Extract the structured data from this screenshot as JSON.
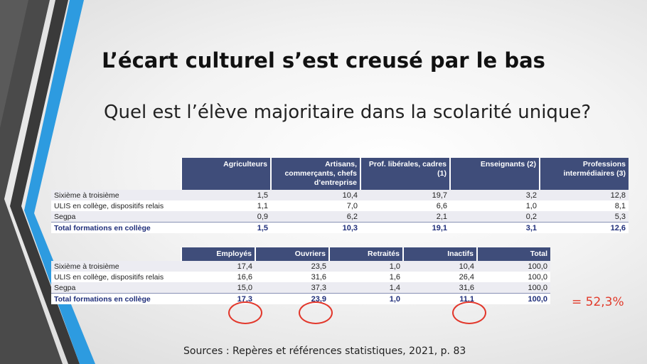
{
  "slide": {
    "title": "L’écart culturel s’est creusé par le bas",
    "subtitle": "Quel est l’élève majoritaire dans la scolarité unique?",
    "annotation": "= 52,3%",
    "source": "Sources : Repères et références statistiques, 2021, p. 83"
  },
  "table1": {
    "headers": [
      "Agriculteurs",
      "Artisans, commerçants, chefs d’entreprise",
      "Prof. libérales, cadres (1)",
      "Enseignants (2)",
      "Professions intermédiaires (3)"
    ],
    "rows": [
      {
        "label": "Sixième à troisième",
        "cells": [
          "1,5",
          "10,4",
          "19,7",
          "3,2",
          "12,8"
        ]
      },
      {
        "label": "ULIS en collège, dispositifs relais",
        "cells": [
          "1,1",
          "7,0",
          "6,6",
          "1,0",
          "8,1"
        ]
      },
      {
        "label": "Segpa",
        "cells": [
          "0,9",
          "6,2",
          "2,1",
          "0,2",
          "5,3"
        ]
      },
      {
        "label": "Total formations en collège",
        "cells": [
          "1,5",
          "10,3",
          "19,1",
          "3,1",
          "12,6"
        ]
      }
    ]
  },
  "table2": {
    "headers": [
      "Employés",
      "Ouvriers",
      "Retraités",
      "Inactifs",
      "Total"
    ],
    "rows": [
      {
        "label": "Sixième à troisième",
        "cells": [
          "17,4",
          "23,5",
          "1,0",
          "10,4",
          "100,0"
        ]
      },
      {
        "label": "ULIS en collège, dispositifs relais",
        "cells": [
          "16,6",
          "31,6",
          "1,6",
          "26,4",
          "100,0"
        ]
      },
      {
        "label": "Segpa",
        "cells": [
          "15,0",
          "37,3",
          "1,4",
          "31,6",
          "100,0"
        ]
      },
      {
        "label": "Total formations en collège",
        "cells": [
          "17,3",
          "23,9",
          "1,0",
          "11,1",
          "100,0"
        ]
      }
    ]
  },
  "colors": {
    "header_bg": "#3f4d7a",
    "total_text": "#1f2e7a",
    "highlight": "#e2372b",
    "deco_blue": "#2d9be0",
    "deco_dark": "#3a3a3a"
  }
}
